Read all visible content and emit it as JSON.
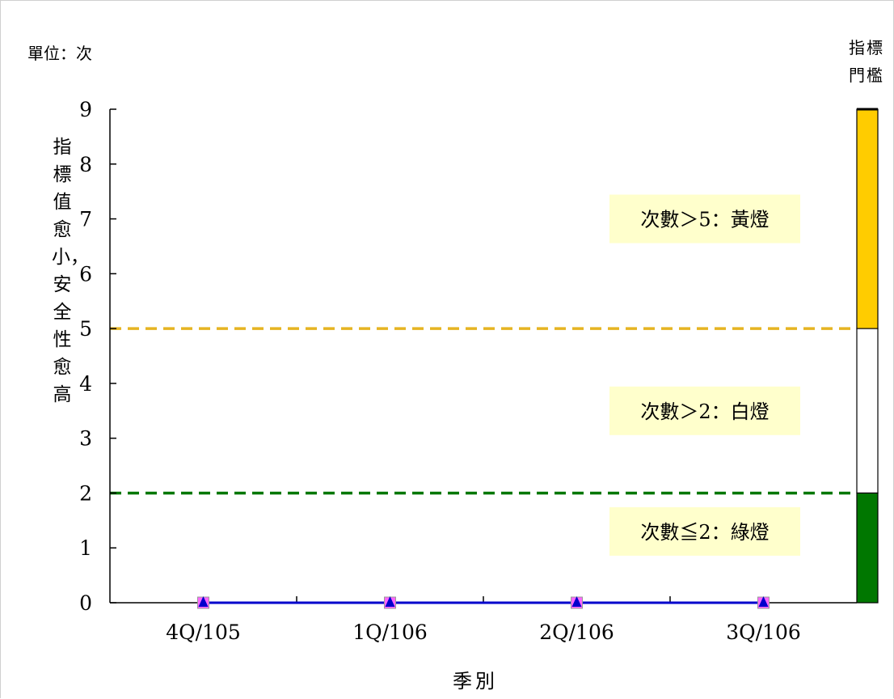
{
  "unit_label": "單位：次",
  "gate_label": "指標門檻",
  "y_axis_label": "指標值愈小，安全性愈高",
  "x_axis_label": "季別",
  "colors": {
    "series": "#0000cc",
    "marker_square": "#ff66ff",
    "marker_triangle": "#0000cc",
    "yellow": "#ffcc00",
    "white": "#ffffff",
    "green": "#007700",
    "yellow_line": "#e6b422",
    "green_line": "#007700",
    "zone_label_bg": "#ffffcc"
  },
  "chart_data": {
    "type": "line",
    "categories": [
      "4Q/105",
      "1Q/106",
      "2Q/106",
      "3Q/106"
    ],
    "series": [
      {
        "values": [
          0,
          0,
          0,
          0
        ]
      }
    ],
    "ylim": [
      0,
      9
    ],
    "yticks": [
      0,
      1,
      2,
      3,
      4,
      5,
      6,
      7,
      8,
      9
    ],
    "thresholds": [
      {
        "value": 5,
        "style": "dashed",
        "color": "#e6b422"
      },
      {
        "value": 2,
        "style": "dashed",
        "color": "#007700"
      }
    ],
    "zones": [
      {
        "from": 5,
        "to": 9,
        "color": "#ffcc00",
        "label": "次數＞5：黃燈"
      },
      {
        "from": 2,
        "to": 5,
        "color": "#ffffff",
        "label": "次數＞2：白燈"
      },
      {
        "from": 0,
        "to": 2,
        "color": "#007700",
        "label": "次數≦2：綠燈"
      }
    ]
  }
}
